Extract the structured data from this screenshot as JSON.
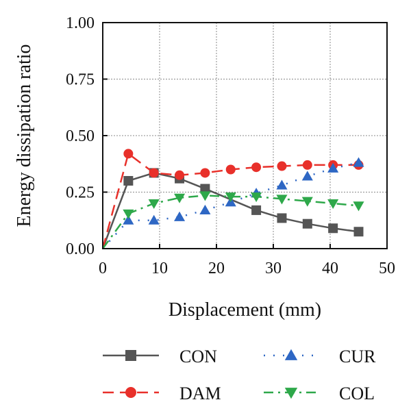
{
  "chart_data": {
    "type": "line",
    "xlabel": "Displacement (mm)",
    "ylabel": "Energy dissipation ratio",
    "xlim": [
      0,
      50
    ],
    "ylim": [
      0,
      1
    ],
    "xticks": [
      "0",
      "10",
      "20",
      "30",
      "40",
      "50"
    ],
    "yticks": [
      "0.00",
      "0.25",
      "0.50",
      "0.75",
      "1.00"
    ],
    "grid": true,
    "legend_position": "bottom",
    "series": [
      {
        "name": "CON",
        "color": "#555555",
        "marker": "square",
        "line": "solid",
        "x": [
          0,
          4.5,
          9,
          13.5,
          18,
          27,
          31.5,
          36,
          40.5,
          45
        ],
        "y": [
          0.0,
          0.3,
          0.335,
          0.31,
          0.265,
          0.17,
          0.135,
          0.11,
          0.09,
          0.075
        ]
      },
      {
        "name": "DAM",
        "color": "#e8302a",
        "marker": "circle",
        "line": "dashed",
        "x": [
          0,
          4.5,
          9,
          13.5,
          18,
          22.5,
          27,
          31.5,
          36,
          40.5,
          45
        ],
        "y": [
          0.0,
          0.42,
          0.335,
          0.325,
          0.335,
          0.35,
          0.36,
          0.365,
          0.37,
          0.37,
          0.37
        ]
      },
      {
        "name": "CUR",
        "color": "#2e67c4",
        "marker": "triangle-up",
        "line": "dotted",
        "x": [
          0,
          4.5,
          9,
          13.5,
          18,
          22.5,
          27,
          31.5,
          36,
          40.5,
          45
        ],
        "y": [
          0.0,
          0.125,
          0.125,
          0.14,
          0.17,
          0.205,
          0.245,
          0.28,
          0.32,
          0.355,
          0.38
        ]
      },
      {
        "name": "COL",
        "color": "#2ea84a",
        "marker": "triangle-down",
        "line": "dashdot",
        "x": [
          0,
          4.5,
          9,
          13.5,
          18,
          22.5,
          27,
          31.5,
          36,
          40.5,
          45
        ],
        "y": [
          0.0,
          0.155,
          0.2,
          0.225,
          0.235,
          0.23,
          0.23,
          0.22,
          0.21,
          0.2,
          0.19
        ]
      }
    ]
  }
}
